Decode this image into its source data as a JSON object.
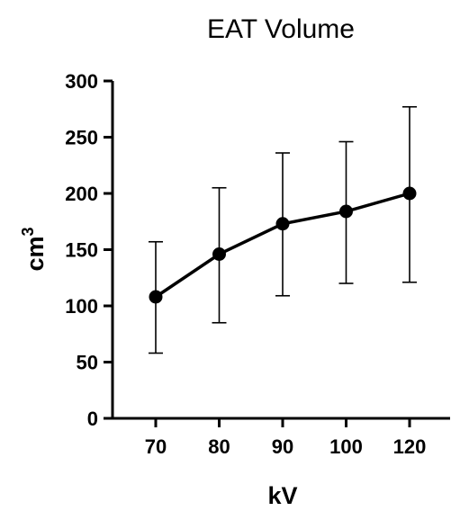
{
  "chart_data": {
    "type": "line",
    "title": "EAT Volume",
    "xlabel": "kV",
    "ylabel": "cm",
    "ylabel_superscript": "3",
    "categories": [
      "70",
      "80",
      "90",
      "100",
      "120"
    ],
    "ylim": [
      0,
      300
    ],
    "yticks": [
      0,
      50,
      100,
      150,
      200,
      250,
      300
    ],
    "grid": false,
    "series": [
      {
        "values": [
          108,
          146,
          173,
          184,
          200
        ],
        "error_low": [
          58,
          85,
          109,
          120,
          121
        ],
        "error_high": [
          157,
          205,
          236,
          246,
          277
        ]
      }
    ],
    "colors": {
      "line": "#000000",
      "marker": "#000000"
    }
  }
}
